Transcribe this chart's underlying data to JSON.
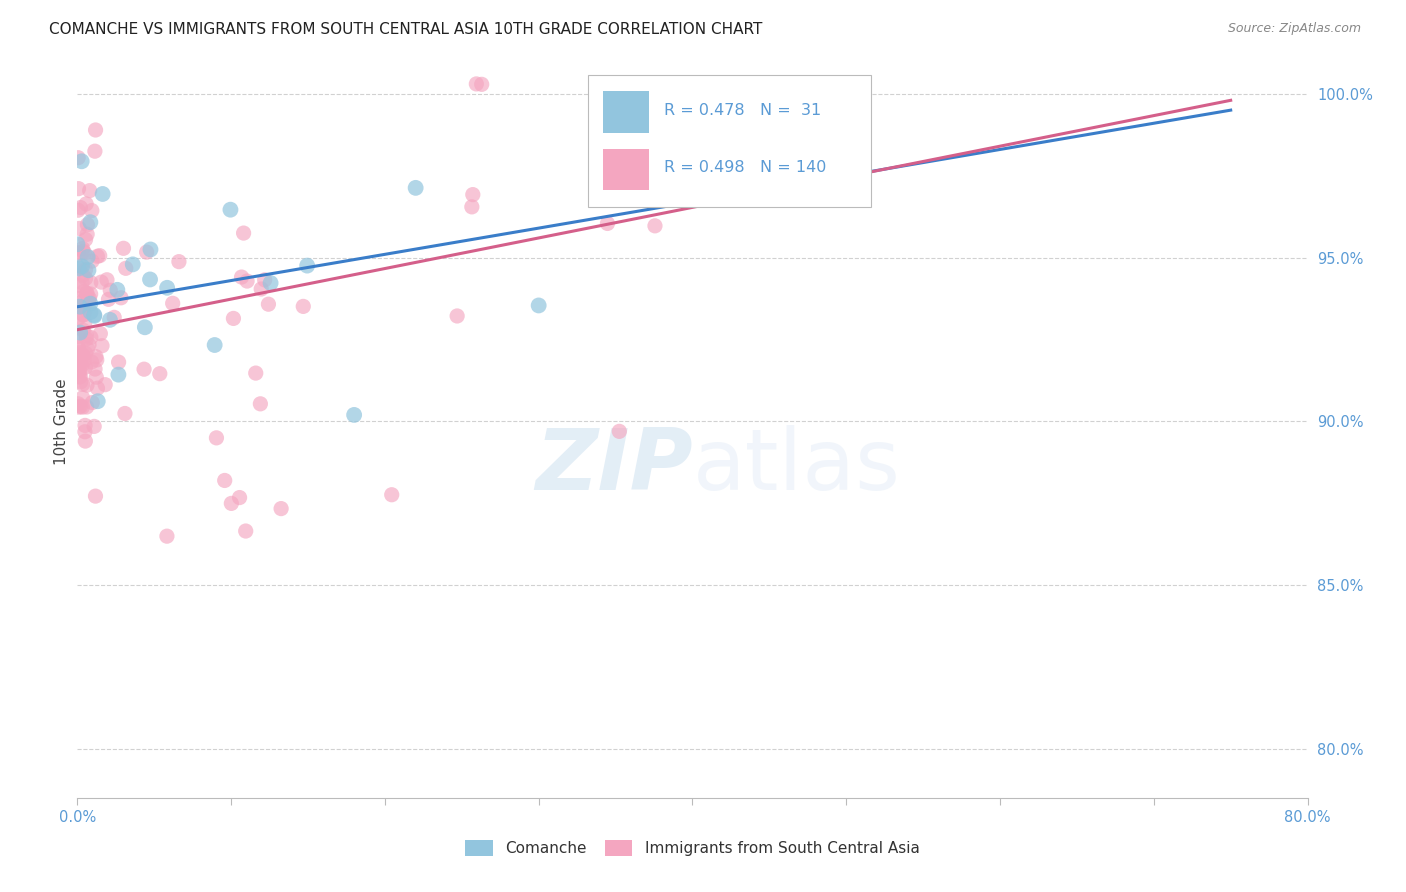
{
  "title": "COMANCHE VS IMMIGRANTS FROM SOUTH CENTRAL ASIA 10TH GRADE CORRELATION CHART",
  "source_text": "Source: ZipAtlas.com",
  "ylabel": "10th Grade",
  "y_ticks_right": [
    80.0,
    85.0,
    90.0,
    95.0,
    100.0
  ],
  "legend_labels": [
    "Comanche",
    "Immigrants from South Central Asia"
  ],
  "r_comanche": 0.478,
  "n_comanche": 31,
  "r_immigrants": 0.498,
  "n_immigrants": 140,
  "blue_color": "#92c5de",
  "pink_color": "#f4a6c0",
  "blue_line_color": "#3a7dc9",
  "pink_line_color": "#d45f8a",
  "watermark_zip": "ZIP",
  "watermark_atlas": "atlas",
  "background_color": "#ffffff",
  "grid_color": "#cccccc",
  "axis_label_color": "#5b9bd5",
  "title_color": "#222222",
  "source_color": "#888888",
  "ylabel_color": "#444444"
}
